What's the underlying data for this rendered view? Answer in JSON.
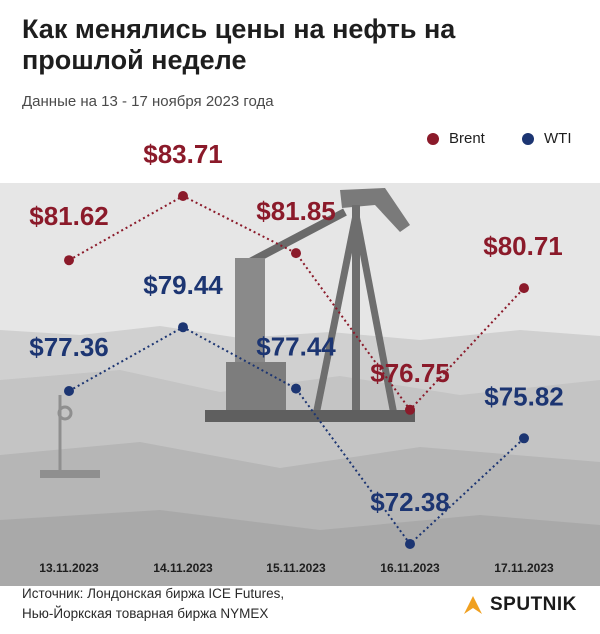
{
  "title": "Как менялись цены на нефть на прошлой неделе",
  "subtitle": "Данные на 13 - 17 ноября 2023 года",
  "legend": {
    "brent": "Brent",
    "wti": "WTI"
  },
  "colors": {
    "brent": "#8b1a2a",
    "wti": "#1c3572"
  },
  "chart_data": {
    "type": "line",
    "categories": [
      "13.11.2023",
      "14.11.2023",
      "15.11.2023",
      "16.11.2023",
      "17.11.2023"
    ],
    "series": [
      {
        "name": "Brent",
        "values": [
          81.62,
          83.71,
          81.85,
          76.75,
          80.71
        ],
        "labels": [
          "$81.62",
          "$83.71",
          "$81.85",
          "$76.75",
          "$80.71"
        ]
      },
      {
        "name": "WTI",
        "values": [
          77.36,
          79.44,
          77.44,
          72.38,
          75.82
        ],
        "labels": [
          "$77.36",
          "$79.44",
          "$77.44",
          "$72.38",
          "$75.82"
        ]
      }
    ],
    "title": "Как менялись цены на нефть на прошлой неделе",
    "xlabel": "",
    "ylabel": "",
    "ylim": [
      71,
      85
    ],
    "grid": false,
    "legend_position": "top-right"
  },
  "footer": {
    "source_line1": "Источник: Лондонская биржа ICE Futures,",
    "source_line2": "Нью-Йоркская товарная биржа NYMEX"
  },
  "logo": {
    "text": "SPUTNIK",
    "icon": "sputnik-arrow-icon"
  }
}
